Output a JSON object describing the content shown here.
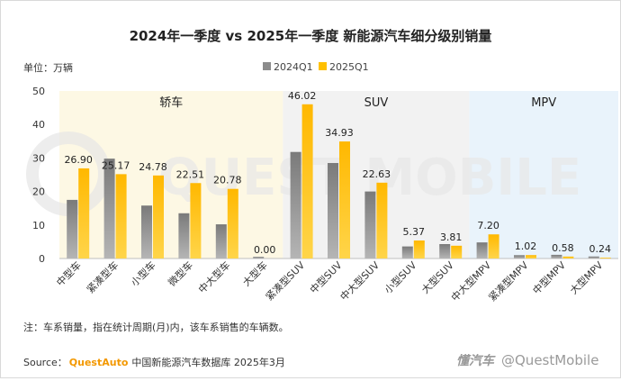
{
  "chart_data": {
    "type": "bar",
    "title": "2024年一季度 vs 2025年一季度 新能源汽车细分级别销量",
    "unit_label": "单位：万辆",
    "ylim": [
      0,
      50
    ],
    "yticks": [
      0,
      10,
      20,
      30,
      40,
      50
    ],
    "categories": [
      "中型车",
      "紧凑型车",
      "小型车",
      "微型车",
      "中大型车",
      "大型车",
      "紧凑型SUV",
      "中型SUV",
      "中大型SUV",
      "小型SUV",
      "大型SUV",
      "中大型MPV",
      "紧凑型MPV",
      "中型MPV",
      "大型MPV"
    ],
    "series": [
      {
        "name": "2024Q1",
        "color": "#8c8c8c",
        "values": [
          17.5,
          29.8,
          15.8,
          13.5,
          10.2,
          0.5,
          31.8,
          28.5,
          20.0,
          3.6,
          4.3,
          4.8,
          1.0,
          1.1,
          0.6
        ]
      },
      {
        "name": "2025Q1",
        "color": "#ffc000",
        "values": [
          26.9,
          25.17,
          24.78,
          22.51,
          20.78,
          0.0,
          46.02,
          34.93,
          22.63,
          5.37,
          3.81,
          7.2,
          1.02,
          0.58,
          0.24
        ]
      }
    ],
    "data_labels": [
      "26.90",
      "25.17",
      "24.78",
      "22.51",
      "20.78",
      "0.00",
      "46.02",
      "34.93",
      "22.63",
      "5.37",
      "3.81",
      "7.20",
      "1.02",
      "0.58",
      "0.24"
    ],
    "groups": [
      {
        "label": "轿车",
        "start": 0,
        "end": 5,
        "color": "#fdf8e4"
      },
      {
        "label": "SUV",
        "start": 6,
        "end": 10,
        "color": "#f2f2f2"
      },
      {
        "label": "MPV",
        "start": 11,
        "end": 14,
        "color": "#e9f3fb"
      }
    ],
    "legend_position": "top-center"
  },
  "footer": {
    "note": "注：车系销量，指在统计周期(月)内，该车系销售的车辆数。",
    "source_prefix": "Source：",
    "source_brand": "QuestAuto",
    "source_rest": "中国新能源汽车数据库 2025年3月",
    "watermark_left": "懂汽车",
    "watermark_right": "@QuestMobile",
    "bg_watermark": "QUEST MOBILE"
  }
}
